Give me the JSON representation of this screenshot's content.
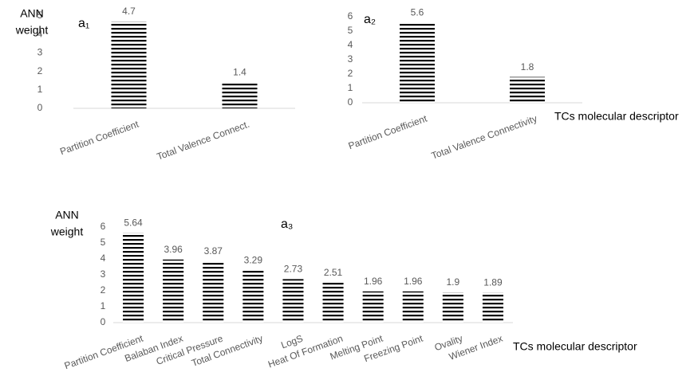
{
  "chart_data": [
    {
      "type": "bar",
      "panel_label": "a₁",
      "y_label": [
        "ANN",
        "weight"
      ],
      "categories": [
        "Partition Coefficient",
        "Total Valence Connect."
      ],
      "values": [
        4.7,
        1.4
      ],
      "color": "#000000",
      "ylim": [
        0,
        5
      ],
      "yticks": [
        0,
        1,
        2,
        3,
        4,
        5
      ]
    },
    {
      "type": "bar",
      "panel_label": "a₂",
      "x_label": "TCs molecular descriptor",
      "categories": [
        "Partition Coefficient",
        "Total Valence Connectivity"
      ],
      "values": [
        5.6,
        1.8
      ],
      "color": "#000000",
      "ylim": [
        0,
        6
      ],
      "yticks": [
        0,
        1,
        2,
        3,
        4,
        5,
        6
      ]
    },
    {
      "type": "bar",
      "panel_label": "a₃",
      "y_label": [
        "ANN",
        "weight"
      ],
      "x_label": "TCs molecular descriptor",
      "categories": [
        "Partition Coefficient",
        "Balaban Index",
        "Critical Pressure",
        "Total Connectivity",
        "LogS",
        "Heat Of Formation",
        "Melting Point",
        "Freezing Point",
        "Ovality",
        "Wiener Index"
      ],
      "values": [
        5.64,
        3.96,
        3.87,
        3.29,
        2.73,
        2.51,
        1.96,
        1.96,
        1.9,
        1.89
      ],
      "color": "#000000",
      "ylim": [
        0,
        6
      ],
      "yticks": [
        0,
        1,
        2,
        3,
        4,
        5,
        6
      ]
    }
  ]
}
